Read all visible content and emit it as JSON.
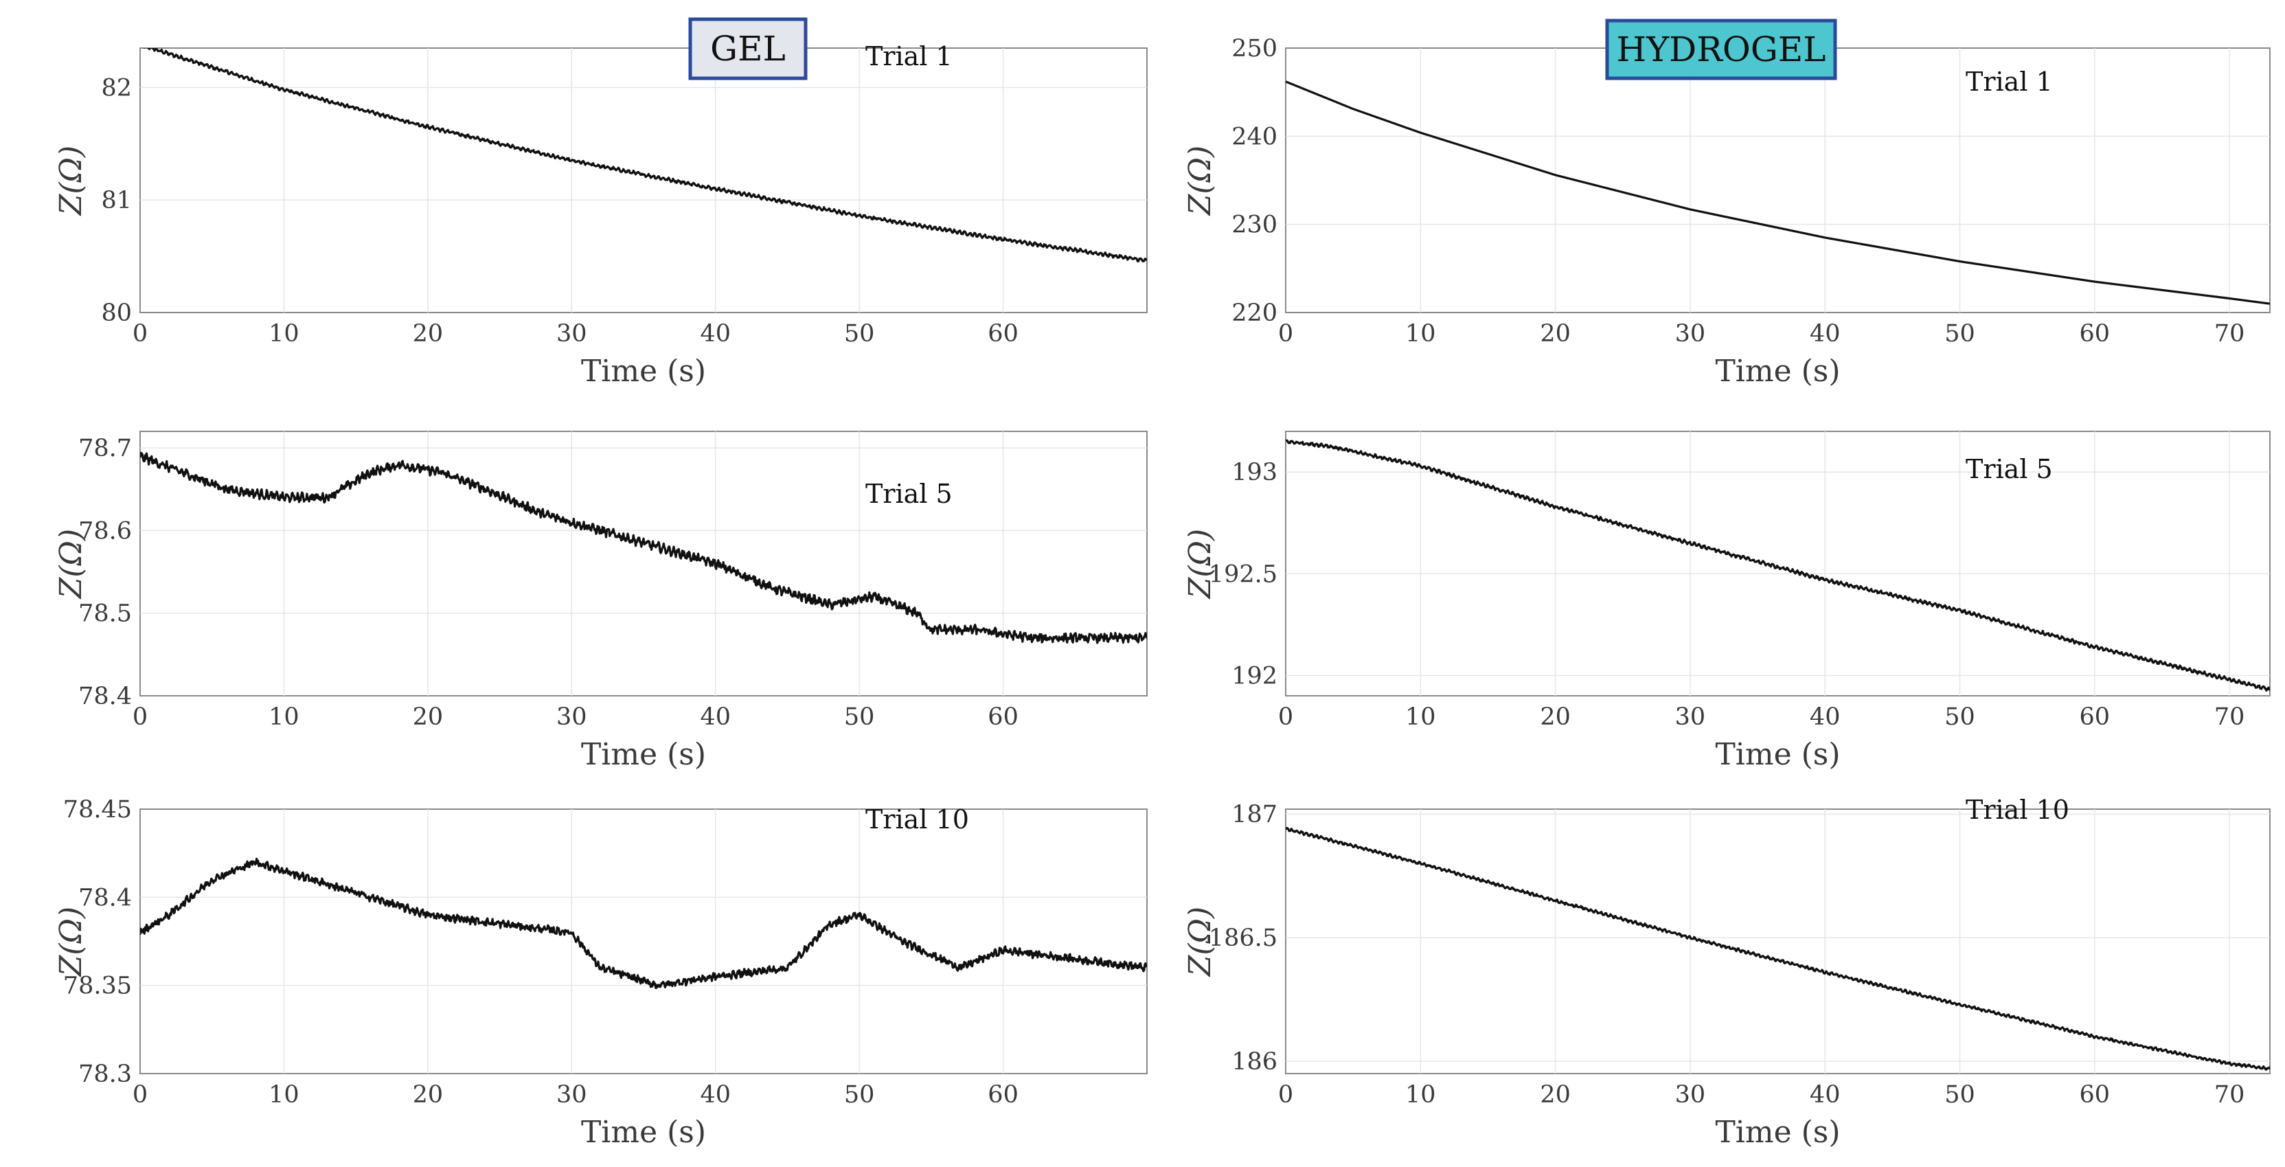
{
  "chart_data": [
    {
      "type": "line",
      "panel": "GEL Trial 1",
      "column_label": "GEL",
      "column_label_bg": "#e4e6ee",
      "annotation": "Trial 1",
      "xlabel": "Time (s)",
      "ylabel": "Z(Ω)",
      "xlim": [
        0,
        70
      ],
      "ylim": [
        80,
        82.35
      ],
      "xticks": [
        0,
        10,
        20,
        30,
        40,
        50,
        60
      ],
      "xtick_labels": [
        "0",
        "10",
        "20",
        "30",
        "40",
        "50",
        "60"
      ],
      "yticks": [
        80,
        81,
        82
      ],
      "ytick_labels": [
        "80",
        "81",
        "82"
      ],
      "series": [
        {
          "name": "GEL Trial 1",
          "x": [
            0,
            5,
            10,
            20,
            30,
            40,
            50,
            60,
            70
          ],
          "y": [
            82.38,
            82.18,
            81.98,
            81.65,
            81.35,
            81.1,
            80.86,
            80.65,
            80.46
          ]
        }
      ],
      "noise": 0.012,
      "jitter": 0.3
    },
    {
      "type": "line",
      "panel": "HYDROGEL Trial 1",
      "column_label": "HYDROGEL",
      "column_label_bg": "#4ec6d0",
      "annotation": "Trial 1",
      "xlabel": "Time (s)",
      "ylabel": "Z(Ω)",
      "xlim": [
        0,
        73
      ],
      "ylim": [
        220,
        250
      ],
      "xticks": [
        0,
        10,
        20,
        30,
        40,
        50,
        60,
        70
      ],
      "xtick_labels": [
        "0",
        "10",
        "20",
        "30",
        "40",
        "50",
        "60",
        "70"
      ],
      "yticks": [
        220,
        230,
        240,
        250
      ],
      "ytick_labels": [
        "220",
        "230",
        "240",
        "250"
      ],
      "series": [
        {
          "name": "HYDROGEL Trial 1",
          "x": [
            0,
            5,
            10,
            20,
            30,
            40,
            50,
            60,
            70,
            73
          ],
          "y": [
            246.2,
            243.1,
            240.4,
            235.6,
            231.7,
            228.5,
            225.8,
            223.5,
            221.6,
            221.0
          ]
        }
      ],
      "noise": 0,
      "jitter": 0
    },
    {
      "type": "line",
      "panel": "GEL Trial 5",
      "annotation": "Trial 5",
      "xlabel": "Time (s)",
      "ylabel": "Z(Ω)",
      "xlim": [
        0,
        70
      ],
      "ylim": [
        78.4,
        78.72
      ],
      "xticks": [
        0,
        10,
        20,
        30,
        40,
        50,
        60
      ],
      "xtick_labels": [
        "0",
        "10",
        "20",
        "30",
        "40",
        "50",
        "60"
      ],
      "yticks": [
        78.4,
        78.5,
        78.6,
        78.7
      ],
      "ytick_labels": [
        "78.4",
        "78.5",
        "78.6",
        "78.7"
      ],
      "series": [
        {
          "name": "GEL Trial 5",
          "x": [
            0,
            3,
            6,
            10,
            13,
            16,
            18,
            21,
            24,
            28,
            32,
            36,
            40,
            44,
            48,
            51,
            54,
            55,
            58,
            62,
            65,
            68,
            70
          ],
          "y": [
            78.69,
            78.67,
            78.65,
            78.64,
            78.64,
            78.67,
            78.68,
            78.67,
            78.65,
            78.62,
            78.6,
            78.58,
            78.56,
            78.53,
            78.51,
            78.52,
            78.5,
            78.48,
            78.48,
            78.47,
            78.47,
            78.47,
            78.47
          ]
        }
      ],
      "noise": 0.02,
      "jitter": 0.65
    },
    {
      "type": "line",
      "panel": "HYDROGEL Trial 5",
      "annotation": "Trial 5",
      "xlabel": "Time (s)",
      "ylabel": "Z(Ω)",
      "xlim": [
        0,
        73
      ],
      "ylim": [
        191.9,
        193.2
      ],
      "xticks": [
        0,
        10,
        20,
        30,
        40,
        50,
        60,
        70
      ],
      "xtick_labels": [
        "0",
        "10",
        "20",
        "30",
        "40",
        "50",
        "60",
        "70"
      ],
      "yticks": [
        192,
        192.5,
        193
      ],
      "ytick_labels": [
        "192",
        "192.5",
        "193"
      ],
      "series": [
        {
          "name": "HYDROGEL Trial 5",
          "x": [
            0,
            3,
            10,
            20,
            30,
            40,
            50,
            60,
            70,
            73
          ],
          "y": [
            193.15,
            193.13,
            193.03,
            192.83,
            192.65,
            192.47,
            192.32,
            192.14,
            191.98,
            191.93
          ]
        }
      ],
      "noise": 0.012,
      "jitter": 0.3
    },
    {
      "type": "line",
      "panel": "GEL Trial 10",
      "annotation": "Trial 10",
      "xlabel": "Time (s)",
      "ylabel": "Z(Ω)",
      "xlim": [
        0,
        70
      ],
      "ylim": [
        78.3,
        78.45
      ],
      "xticks": [
        0,
        10,
        20,
        30,
        40,
        50,
        60
      ],
      "xtick_labels": [
        "0",
        "10",
        "20",
        "30",
        "40",
        "50",
        "60"
      ],
      "yticks": [
        78.3,
        78.35,
        78.4,
        78.45
      ],
      "ytick_labels": [
        "78.3",
        "78.35",
        "78.4",
        "78.45"
      ],
      "series": [
        {
          "name": "GEL Trial 10",
          "x": [
            0,
            2,
            5,
            8,
            12,
            16,
            20,
            25,
            30,
            32,
            36,
            40,
            45,
            48,
            50,
            53,
            57,
            60,
            65,
            70
          ],
          "y": [
            78.38,
            78.39,
            78.41,
            78.42,
            78.41,
            78.4,
            78.39,
            78.385,
            78.38,
            78.36,
            78.35,
            78.355,
            78.36,
            78.385,
            78.39,
            78.375,
            78.36,
            78.37,
            78.365,
            78.36
          ]
        }
      ],
      "noise": 0.015,
      "jitter": 0.75
    },
    {
      "type": "line",
      "panel": "HYDROGEL Trial 10",
      "annotation": "Trial 10",
      "xlabel": "Time (s)",
      "ylabel": "Z(Ω)",
      "xlim": [
        0,
        73
      ],
      "ylim": [
        185.95,
        187.02
      ],
      "xticks": [
        0,
        10,
        20,
        30,
        40,
        50,
        60,
        70
      ],
      "xtick_labels": [
        "0",
        "10",
        "20",
        "30",
        "40",
        "50",
        "60",
        "70"
      ],
      "yticks": [
        186,
        186.5,
        187
      ],
      "ytick_labels": [
        "186",
        "186.5",
        "187"
      ],
      "series": [
        {
          "name": "HYDROGEL Trial 10",
          "x": [
            0,
            3,
            10,
            20,
            30,
            40,
            50,
            60,
            70,
            73
          ],
          "y": [
            186.94,
            186.9,
            186.8,
            186.65,
            186.5,
            186.36,
            186.23,
            186.1,
            185.99,
            185.97
          ]
        }
      ],
      "noise": 0.01,
      "jitter": 0.3
    }
  ]
}
